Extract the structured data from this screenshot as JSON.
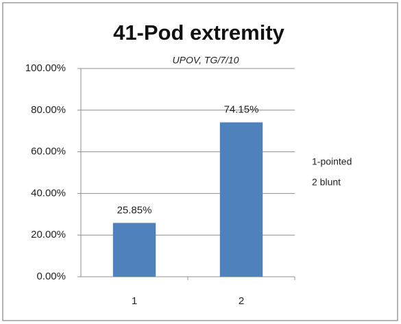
{
  "chart_data": {
    "type": "bar",
    "title": "41-Pod extremity",
    "subtitle": "UPOV, TG/7/10",
    "categories": [
      "1",
      "2"
    ],
    "values": [
      25.85,
      74.15
    ],
    "value_labels": [
      "25.85%",
      "74.15%"
    ],
    "color": "#4f81bd",
    "ylim": [
      0,
      100
    ],
    "yticks": [
      {
        "value": 0,
        "label": "0.00%"
      },
      {
        "value": 20,
        "label": "20.00%"
      },
      {
        "value": 40,
        "label": "40.00%"
      },
      {
        "value": 60,
        "label": "60.00%"
      },
      {
        "value": 80,
        "label": "80.00%"
      },
      {
        "value": 100,
        "label": "100.00%"
      }
    ],
    "grid": true,
    "annotations": [
      "1-pointed",
      "2 blunt"
    ]
  }
}
